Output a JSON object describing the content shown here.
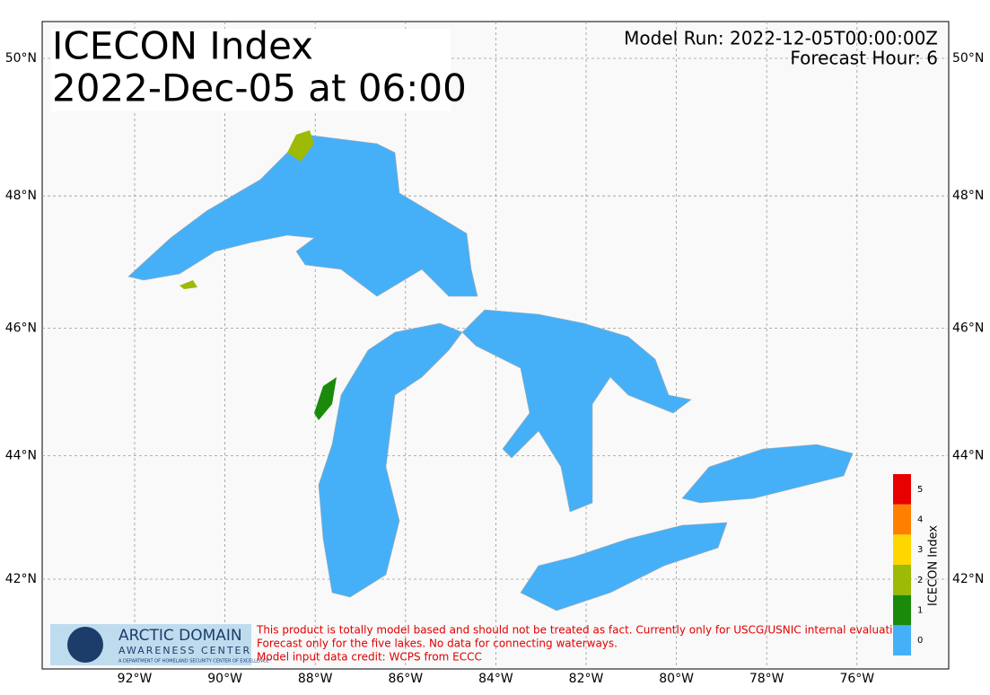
{
  "header": {
    "title": "ICECON Index",
    "subtitle": "2022-Dec-05 at 06:00",
    "model_run": "Model Run: 2022-12-05T00:00:00Z",
    "forecast_hour": "Forecast Hour: 6"
  },
  "map": {
    "lon_ticks": [
      {
        "value": -92,
        "label": "92°W"
      },
      {
        "value": -90,
        "label": "90°W"
      },
      {
        "value": -88,
        "label": "88°W"
      },
      {
        "value": -86,
        "label": "86°W"
      },
      {
        "value": -84,
        "label": "84°W"
      },
      {
        "value": -82,
        "label": "82°W"
      },
      {
        "value": -80,
        "label": "80°W"
      },
      {
        "value": -78,
        "label": "78°W"
      },
      {
        "value": -76,
        "label": "76°W"
      }
    ],
    "lat_ticks": [
      {
        "value": 50,
        "label": "50°N"
      },
      {
        "value": 48,
        "label": "48°N"
      },
      {
        "value": 46,
        "label": "46°N"
      },
      {
        "value": 44,
        "label": "44°N"
      },
      {
        "value": 42,
        "label": "42°N"
      }
    ],
    "grid": true
  },
  "colorbar": {
    "label": "ICECON Index",
    "levels": [
      0,
      1,
      2,
      3,
      4,
      5
    ],
    "colors": [
      "#45b0f8",
      "#1a8a0a",
      "#9cba06",
      "#ffd700",
      "#ff8000",
      "#e80000"
    ]
  },
  "logo": {
    "name": "ARCTIC DOMAIN",
    "subname": "AWARENESS CENTER",
    "tagline": "A DEPARTMENT OF HOMELAND SECURITY CENTER OF EXCELLENCE"
  },
  "disclaimer": [
    "This product is totally model based and should not be treated as fact. Currently only for USCG/USNIC internal evaluation.",
    "Forecast only for the five lakes. No data for connecting waterways.",
    "Model input data credit: WCPS from ECCC"
  ]
}
